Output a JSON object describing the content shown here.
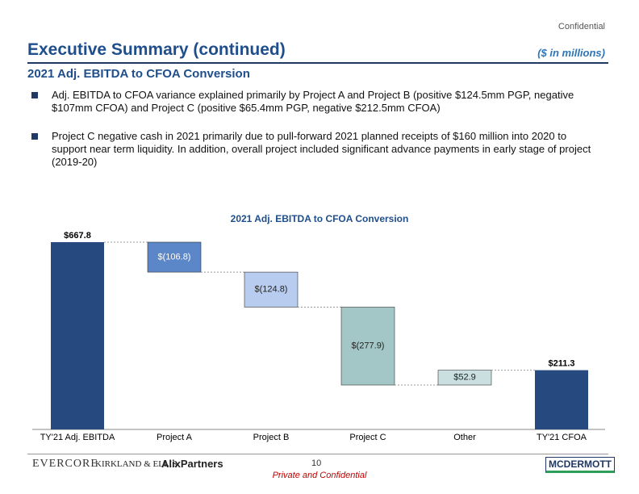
{
  "header": {
    "confidential": "Confidential",
    "title": "Executive Summary (continued)",
    "units": "($ in millions)",
    "subtitle": "2021 Adj. EBITDA to CFOA Conversion"
  },
  "bullets": [
    "Adj. EBITDA to CFOA variance explained primarily by Project A and Project B (positive $124.5mm PGP, negative $107mm CFOA) and Project C (positive $65.4mm PGP, negative $212.5mm CFOA)",
    "Project C negative cash in 2021 primarily due to pull-forward 2021 planned receipts of $160 million into 2020 to support near term liquidity. In addition, overall project included significant advance payments in early stage of project (2019-20)"
  ],
  "chart_data": {
    "type": "waterfall",
    "title": "2021 Adj. EBITDA to CFOA Conversion",
    "categories": [
      "TY'21 Adj. EBITDA",
      "Project A",
      "Project B",
      "Project C",
      "Other",
      "TY'21 CFOA"
    ],
    "values": [
      667.8,
      -106.8,
      -124.8,
      -277.9,
      52.9,
      211.3
    ],
    "value_labels": [
      "$667.8",
      "$(106.8)",
      "$(124.8)",
      "$(277.9)",
      "$52.9",
      "$211.3"
    ],
    "colors": [
      "#264a7f",
      "#5b87c8",
      "#b8ccef",
      "#a3c7c6",
      "#c9dfe0",
      "#264a7f"
    ]
  },
  "footer": {
    "logos": [
      "EVERCORE",
      "KIRKLAND & ELLIS",
      "AlixPartners",
      "MCDERMOTT"
    ],
    "page": "10",
    "note": "Private and Confidential"
  }
}
